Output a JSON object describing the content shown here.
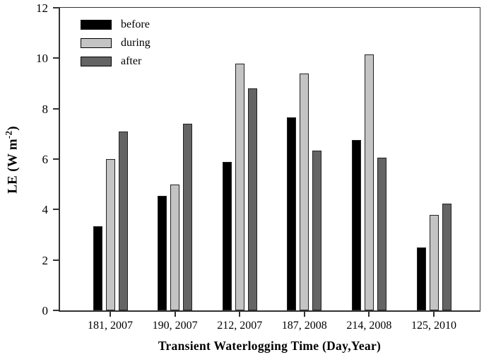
{
  "chart_data": {
    "type": "bar",
    "title": "",
    "xlabel": "Transient Waterlogging Time (Day,Year)",
    "ylabel": "LE (W m⁻²)",
    "ylabel_parts": {
      "prefix": "LE (W m",
      "superscript": "-2",
      "suffix": ")"
    },
    "categories": [
      "181, 2007",
      "190, 2007",
      "212, 2007",
      "187, 2008",
      "214, 2008",
      "125, 2010"
    ],
    "series": [
      {
        "name": "before",
        "color": "#000000",
        "values": [
          3.4,
          4.6,
          5.95,
          7.7,
          6.8,
          2.55
        ]
      },
      {
        "name": "during",
        "color": "#c4c4c4",
        "values": [
          6.05,
          5.05,
          9.85,
          9.45,
          10.2,
          3.85
        ]
      },
      {
        "name": "after",
        "color": "#646464",
        "values": [
          7.15,
          7.45,
          8.85,
          6.4,
          6.1,
          4.3
        ]
      }
    ],
    "ylim": [
      0,
      12
    ],
    "yticks": [
      0,
      2,
      4,
      6,
      8,
      10,
      12
    ],
    "grid": false,
    "legend_position": "top-left",
    "axis_color": "#333333"
  }
}
